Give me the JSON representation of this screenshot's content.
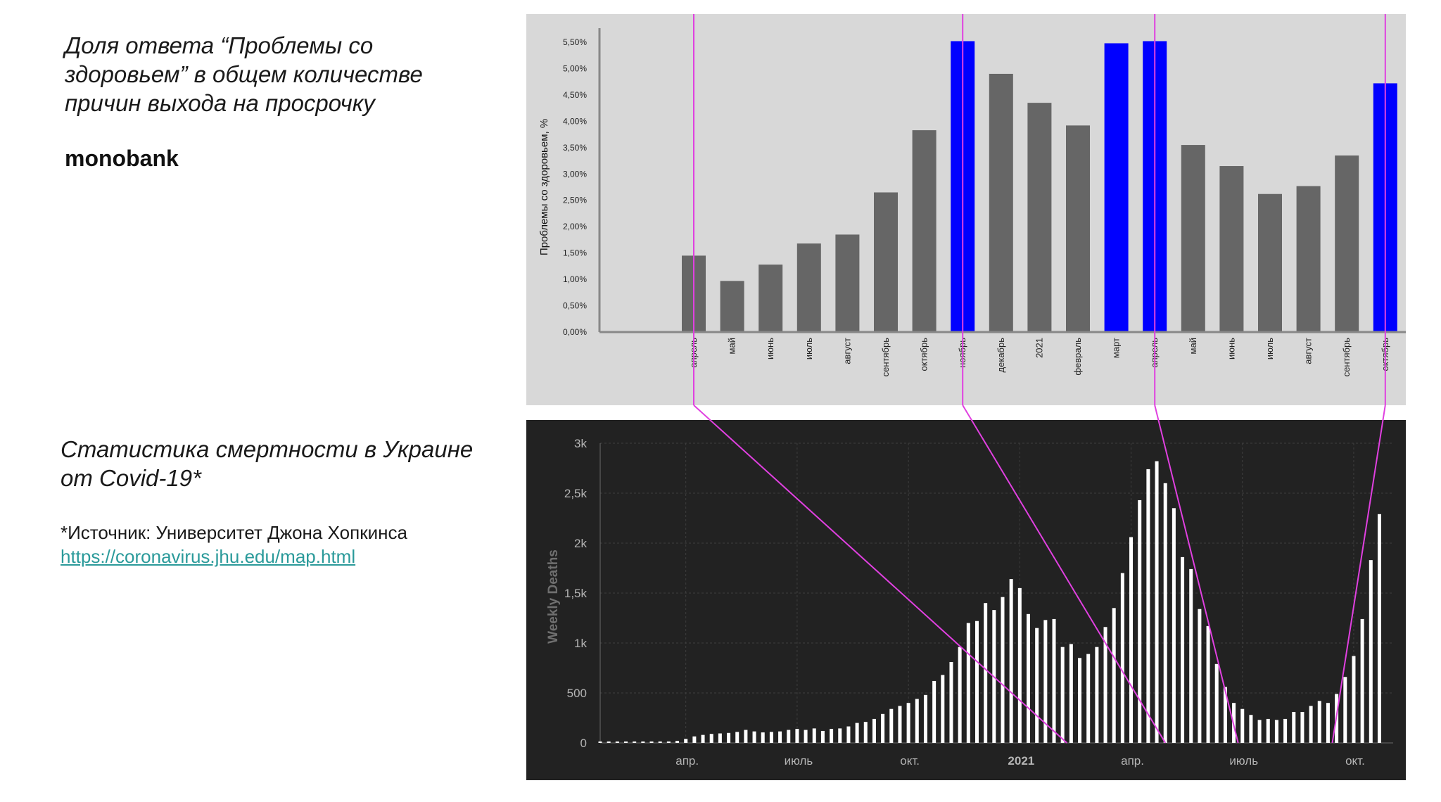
{
  "left_text": {
    "title_1": "Доля ответа “Проблемы со здоровьем” в общем количестве причин выхода на просрочку",
    "brand": "monobank",
    "title_2": "Статистика смертности в Украине от Covid-19*",
    "source_label": "*Источник: Университет  Джона Хопкинса",
    "source_link": "https://coronavirus.jhu.edu/map.html"
  },
  "chart_data": [
    {
      "type": "bar",
      "ylabel": "Проблемы со здоровьем, %",
      "ylim": [
        0,
        5.5
      ],
      "y_ticks": [
        "0,00%",
        "0,50%",
        "1,00%",
        "1,50%",
        "2,00%",
        "2,50%",
        "3,00%",
        "3,50%",
        "4,00%",
        "4,50%",
        "5,00%",
        "5,50%"
      ],
      "categories": [
        "апрель",
        "май",
        "июнь",
        "июль",
        "август",
        "сентябрь",
        "октябрь",
        "ноябрь",
        "декабрь",
        "2021",
        "февраль",
        "март",
        "апрель",
        "май",
        "июнь",
        "июль",
        "август",
        "сентябрь",
        "октябрь"
      ],
      "values": [
        1.45,
        0.97,
        1.28,
        1.68,
        1.85,
        2.65,
        3.83,
        5.52,
        4.9,
        4.35,
        3.92,
        5.48,
        5.52,
        3.55,
        3.15,
        2.62,
        2.77,
        3.35,
        4.72
      ],
      "highlighted": [
        false,
        false,
        false,
        false,
        false,
        false,
        false,
        true,
        false,
        false,
        false,
        true,
        true,
        false,
        false,
        false,
        false,
        false,
        true
      ],
      "colors": {
        "bar": "#666666",
        "highlight": "#0000ff",
        "background": "#d8d8d8"
      },
      "grid": false
    },
    {
      "type": "bar",
      "ylabel": "Weekly Deaths",
      "ylim": [
        0,
        3000
      ],
      "y_ticks": [
        "0",
        "500",
        "1k",
        "1,5k",
        "2k",
        "2,5k",
        "3k"
      ],
      "x_ticks": [
        "апр.",
        "июль",
        "окт.",
        "2021",
        "апр.",
        "июль",
        "окт."
      ],
      "values": [
        1,
        0,
        0,
        0,
        0,
        0,
        4,
        8,
        10,
        20,
        40,
        65,
        80,
        90,
        95,
        100,
        110,
        130,
        115,
        105,
        110,
        115,
        130,
        140,
        130,
        145,
        120,
        140,
        145,
        165,
        200,
        210,
        240,
        290,
        340,
        370,
        400,
        440,
        480,
        620,
        680,
        810,
        960,
        1200,
        1220,
        1400,
        1330,
        1460,
        1640,
        1550,
        1290,
        1150,
        1230,
        1240,
        960,
        990,
        850,
        890,
        960,
        1160,
        1350,
        1700,
        2060,
        2430,
        2740,
        2820,
        2600,
        2350,
        1860,
        1740,
        1340,
        1170,
        790,
        560,
        400,
        340,
        280,
        230,
        240,
        230,
        240,
        310,
        310,
        370,
        420,
        400,
        490,
        660,
        870,
        1240,
        1830,
        2290
      ],
      "colors": {
        "bar": "#ffffff",
        "background": "#222222",
        "grid": "#3e3e3e",
        "text": "#b5b5b5"
      },
      "grid": true
    }
  ],
  "markers": {
    "color": "#e040e0",
    "aligned_months": [
      "апрель",
      "ноябрь",
      "апрель",
      "октябрь"
    ]
  }
}
